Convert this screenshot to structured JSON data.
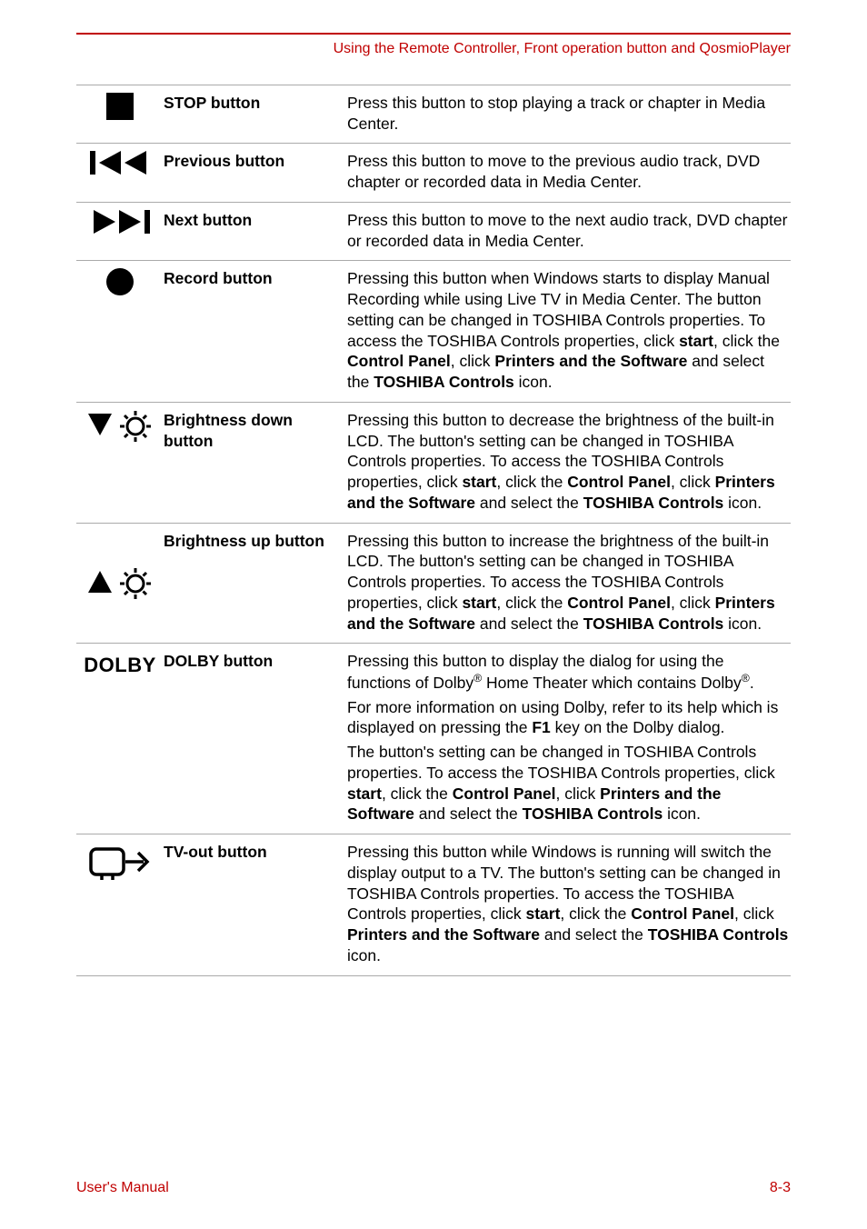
{
  "header": {
    "title": "Using the Remote Controller, Front operation button and QosmioPlayer"
  },
  "rows": [
    {
      "label": "STOP button",
      "icon": "stop",
      "paragraphs": [
        [
          {
            "t": "Press this button to stop playing a track or chapter in Media Center."
          }
        ]
      ]
    },
    {
      "label": "Previous button",
      "icon": "previous",
      "paragraphs": [
        [
          {
            "t": "Press this button to move to the previous audio track, DVD chapter or recorded data in Media Center."
          }
        ]
      ]
    },
    {
      "label": "Next button",
      "icon": "next",
      "paragraphs": [
        [
          {
            "t": "Press this button to move to the next audio track, DVD chapter or recorded data in Media Center."
          }
        ]
      ]
    },
    {
      "label": "Record button",
      "icon": "record",
      "paragraphs": [
        [
          {
            "t": "Pressing this button when Windows starts to display Manual Recording while using Live TV in Media Center. The button setting can be changed in TOSHIBA Controls properties. To access the TOSHIBA Controls properties, click "
          },
          {
            "t": "start",
            "b": true
          },
          {
            "t": ", click the "
          },
          {
            "t": "Control Panel",
            "b": true
          },
          {
            "t": ", click "
          },
          {
            "t": "Printers and the Software",
            "b": true
          },
          {
            "t": " and select the "
          },
          {
            "t": "TOSHIBA Controls",
            "b": true
          },
          {
            "t": " icon."
          }
        ]
      ]
    },
    {
      "label": "Brightness down button",
      "icon": "bright-down",
      "paragraphs": [
        [
          {
            "t": "Pressing this button to decrease the brightness of the built-in LCD. The button's setting can be changed in TOSHIBA Controls properties. To access the TOSHIBA Controls properties, click "
          },
          {
            "t": "start",
            "b": true
          },
          {
            "t": ", click the "
          },
          {
            "t": "Control Panel",
            "b": true
          },
          {
            "t": ", click "
          },
          {
            "t": "Printers and the Software",
            "b": true
          },
          {
            "t": " and select the "
          },
          {
            "t": "TOSHIBA Controls",
            "b": true
          },
          {
            "t": " icon."
          }
        ]
      ]
    },
    {
      "label": "Brightness up button",
      "icon": "bright-up",
      "paragraphs": [
        [
          {
            "t": "Pressing this button to increase the brightness of the built-in LCD. The button's setting can be changed in TOSHIBA Controls properties. To access the TOSHIBA Controls properties, click "
          },
          {
            "t": "start",
            "b": true
          },
          {
            "t": ", click the "
          },
          {
            "t": "Control Panel",
            "b": true
          },
          {
            "t": ", click "
          },
          {
            "t": "Printers and the Software",
            "b": true
          },
          {
            "t": " and select the "
          },
          {
            "t": "TOSHIBA Controls",
            "b": true
          },
          {
            "t": " icon."
          }
        ]
      ]
    },
    {
      "label": "DOLBY button",
      "icon": "dolby",
      "paragraphs": [
        [
          {
            "t": "Pressing this button to display the dialog for using the functions of Dolby"
          },
          {
            "t": "®",
            "sup": true
          },
          {
            "t": " Home Theater which contains Dolby"
          },
          {
            "t": "®",
            "sup": true
          },
          {
            "t": "."
          }
        ],
        [
          {
            "t": "For more information on using Dolby, refer to its help which is displayed on pressing the "
          },
          {
            "t": "F1",
            "b": true
          },
          {
            "t": " key on the Dolby dialog."
          }
        ],
        [
          {
            "t": "The button's setting can be changed in TOSHIBA Controls properties. To access the TOSHIBA Controls properties, click "
          },
          {
            "t": "start",
            "b": true
          },
          {
            "t": ", click the "
          },
          {
            "t": "Control Panel",
            "b": true
          },
          {
            "t": ", click "
          },
          {
            "t": "Printers and the Software",
            "b": true
          },
          {
            "t": " and select the "
          },
          {
            "t": "TOSHIBA Controls",
            "b": true
          },
          {
            "t": " icon."
          }
        ]
      ]
    },
    {
      "label": "TV-out button",
      "icon": "tvout",
      "paragraphs": [
        [
          {
            "t": "Pressing this button while Windows is running will switch the display output to a TV. The button's setting can be changed in TOSHIBA Controls properties. To access the TOSHIBA Controls properties, click "
          },
          {
            "t": "start",
            "b": true
          },
          {
            "t": ", click the "
          },
          {
            "t": "Control Panel",
            "b": true
          },
          {
            "t": ", click "
          },
          {
            "t": "Printers and the Software",
            "b": true
          },
          {
            "t": " and select the "
          },
          {
            "t": "TOSHIBA Controls",
            "b": true
          },
          {
            "t": " icon."
          }
        ]
      ]
    }
  ],
  "footer": {
    "left": "User's Manual",
    "right": "8-3"
  },
  "colors": {
    "accent": "#c00000",
    "rule": "#aaaaaa",
    "text": "#000000",
    "bg": "#ffffff"
  }
}
